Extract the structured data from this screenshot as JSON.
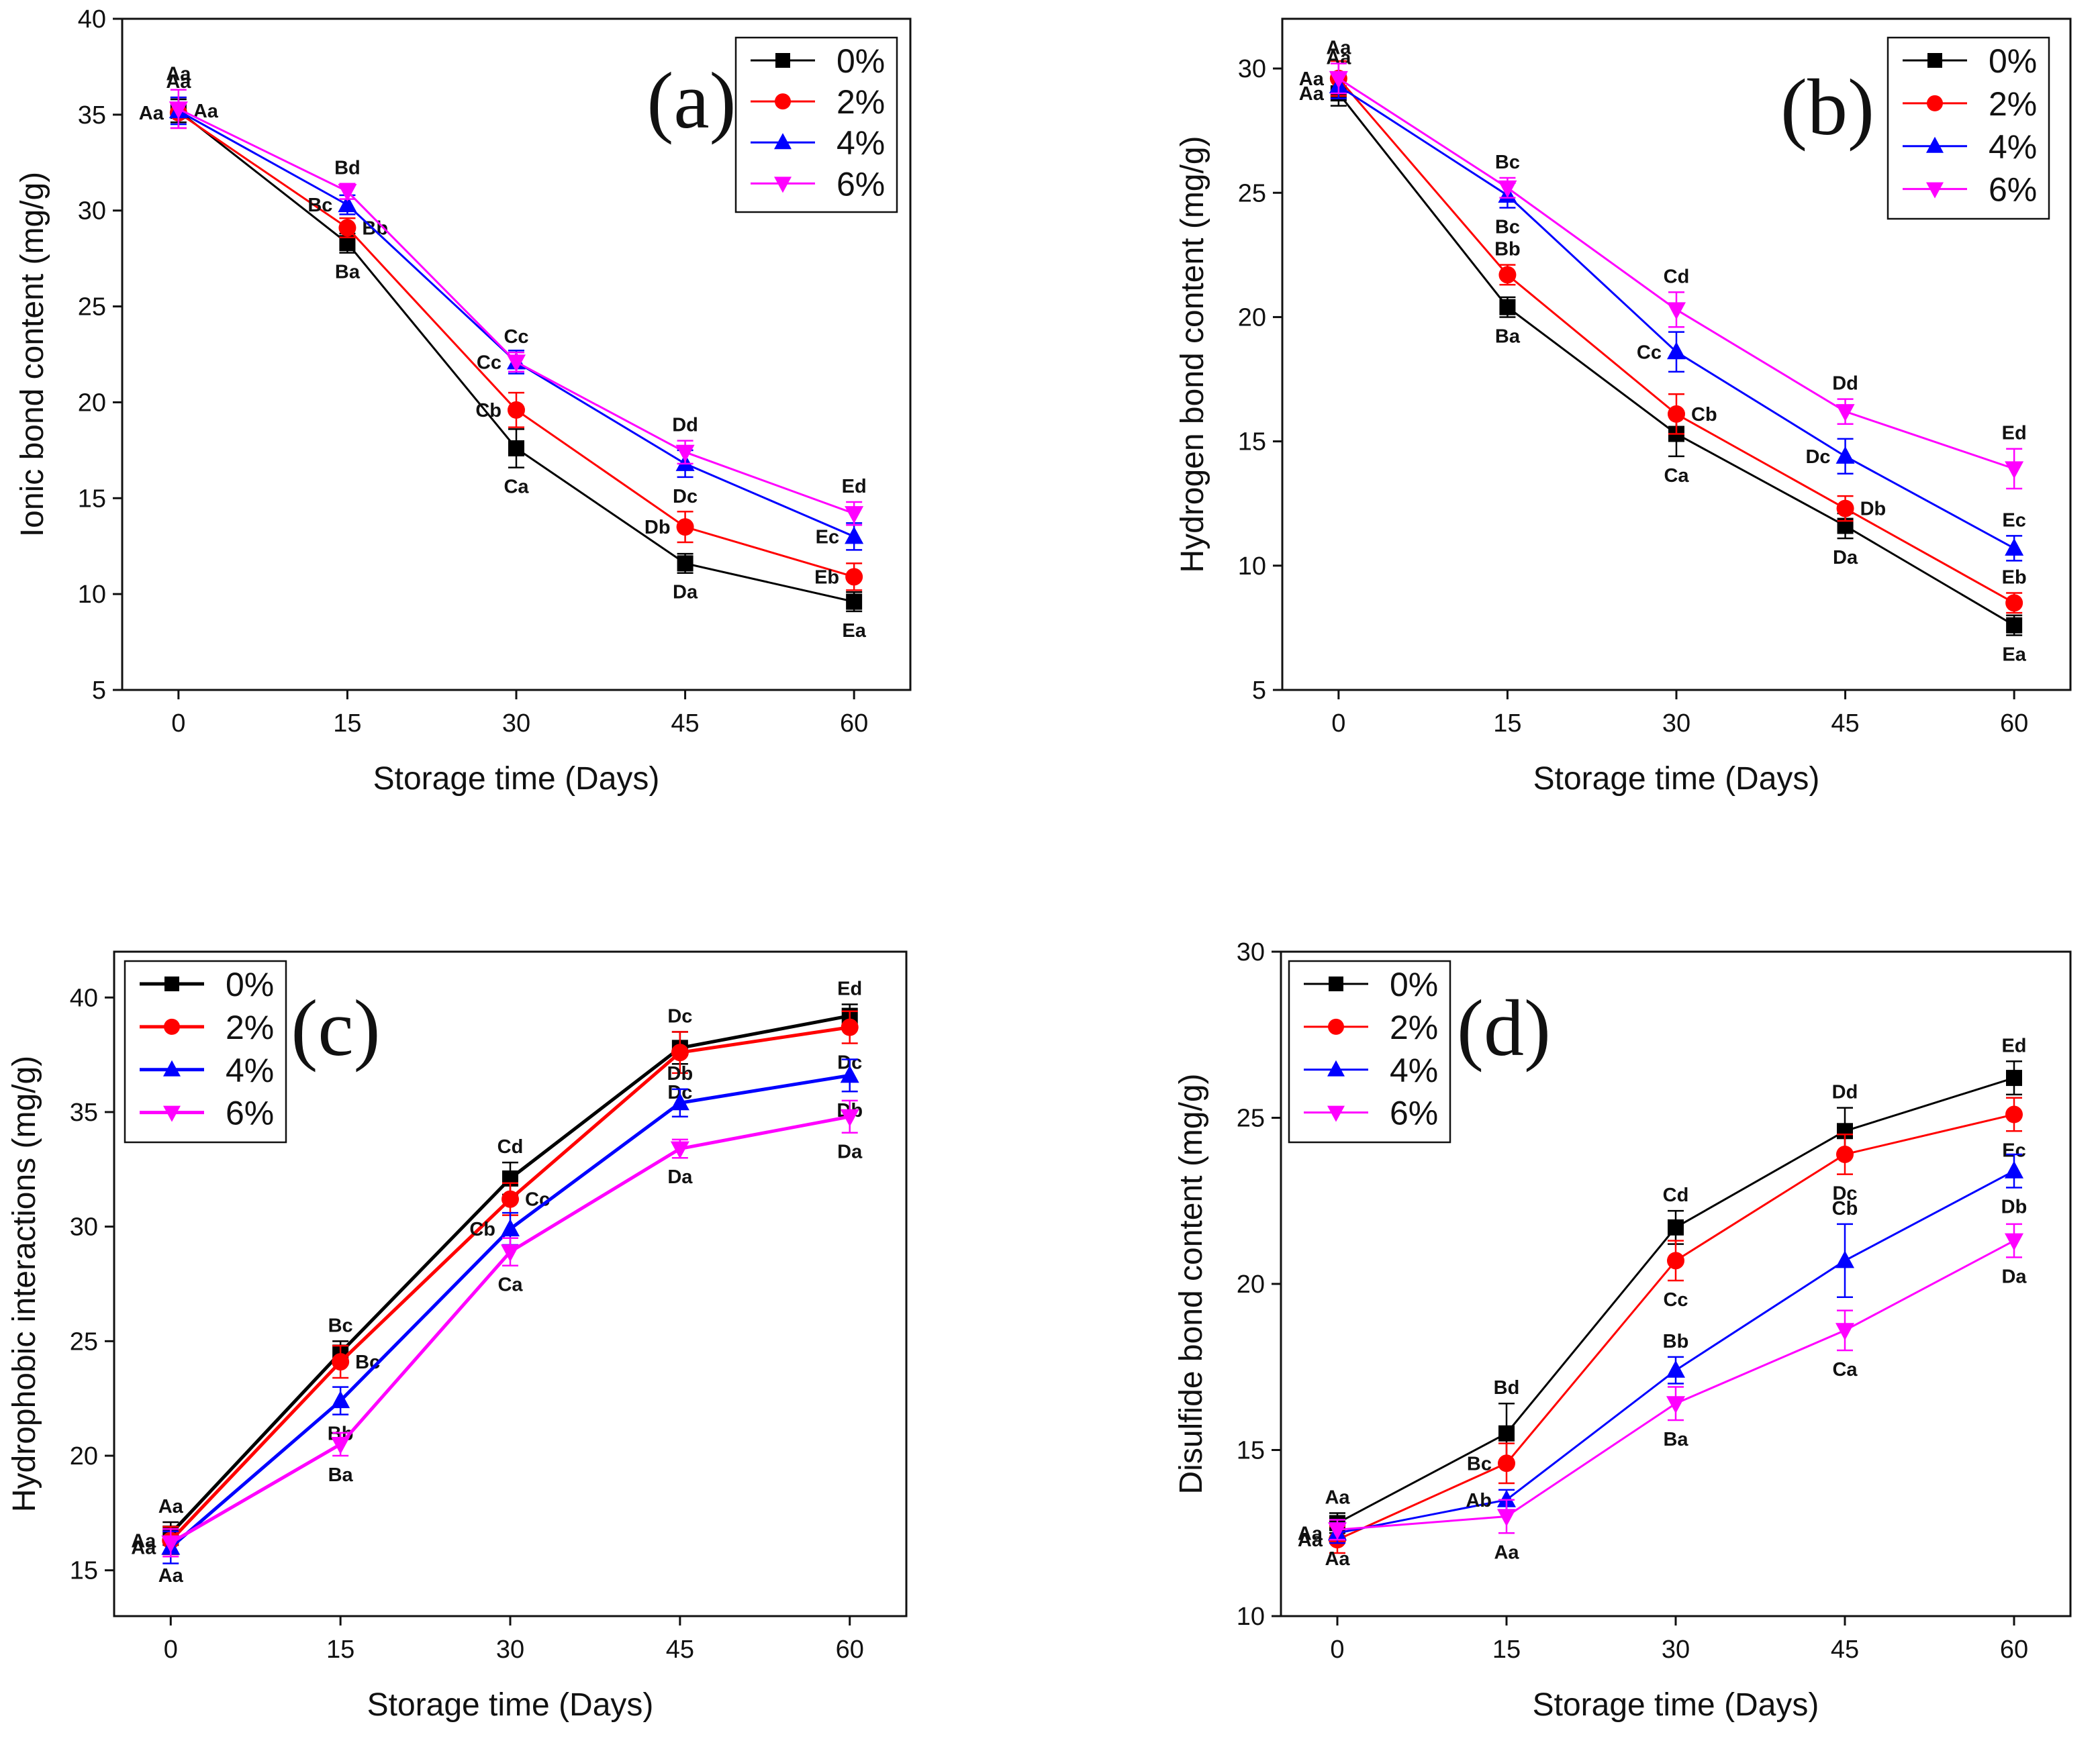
{
  "figure": {
    "x_label": "Storage time (Days)",
    "legend": [
      "0%",
      "2%",
      "4%",
      "6%"
    ],
    "series_colors": [
      "#000000",
      "#ff0000",
      "#0000ff",
      "#ff00ff"
    ],
    "series_markers": [
      "square",
      "circle",
      "triangle-up",
      "triangle-down"
    ]
  },
  "chart_data": [
    {
      "type": "line",
      "panel": "(a)",
      "title": "",
      "xlabel": "Storage time (Days)",
      "ylabel": "Ionic bond content (mg/g)",
      "x": [
        0,
        15,
        30,
        45,
        60
      ],
      "xticks": [
        0,
        15,
        30,
        45,
        60
      ],
      "xlim": [
        -5,
        65
      ],
      "ylim": [
        5,
        40
      ],
      "yticks": [
        5,
        10,
        15,
        20,
        25,
        30,
        35,
        40
      ],
      "legend_position": "top-right",
      "series": [
        {
          "name": "0%",
          "values": [
            35.2,
            28.3,
            17.6,
            11.6,
            9.6
          ],
          "errors": [
            0.6,
            0.5,
            1.0,
            0.5,
            0.5
          ],
          "labels": [
            "Aa",
            "Ba",
            "Ca",
            "Da",
            "Ea"
          ]
        },
        {
          "name": "2%",
          "values": [
            35.1,
            29.1,
            19.6,
            13.5,
            10.9
          ],
          "errors": [
            0.8,
            0.5,
            0.9,
            0.8,
            0.7
          ],
          "labels": [
            "Aa",
            "Bb",
            "Cb",
            "Db",
            "Eb"
          ]
        },
        {
          "name": "4%",
          "values": [
            35.2,
            30.3,
            22.1,
            16.8,
            13.0
          ],
          "errors": [
            0.7,
            0.5,
            0.6,
            0.7,
            0.7
          ],
          "labels": [
            "Aa",
            "Bc",
            "Cc",
            "Dc",
            "Ec"
          ]
        },
        {
          "name": "6%",
          "values": [
            35.3,
            31.0,
            22.1,
            17.4,
            14.2
          ],
          "errors": [
            1.0,
            0.4,
            0.5,
            0.6,
            0.6
          ],
          "labels": [
            "Aa",
            "Bd",
            "Cc",
            "Dd",
            "Ed"
          ]
        }
      ]
    },
    {
      "type": "line",
      "panel": "(b)",
      "title": "",
      "xlabel": "Storage time (Days)",
      "ylabel": "Hydrogen bond content (mg/g)",
      "x": [
        0,
        15,
        30,
        45,
        60
      ],
      "xticks": [
        0,
        15,
        30,
        45,
        60
      ],
      "xlim": [
        -5,
        65
      ],
      "ylim": [
        5,
        32
      ],
      "yticks": [
        5,
        10,
        15,
        20,
        25,
        30
      ],
      "legend_position": "top-right",
      "series": [
        {
          "name": "0%",
          "values": [
            29.0,
            20.4,
            15.3,
            11.6,
            7.6
          ],
          "errors": [
            0.5,
            0.4,
            0.9,
            0.5,
            0.4
          ],
          "labels": [
            "Aa",
            "Ba",
            "Ca",
            "Da",
            "Ea"
          ]
        },
        {
          "name": "2%",
          "values": [
            29.6,
            21.7,
            16.1,
            12.3,
            8.5
          ],
          "errors": [
            0.7,
            0.4,
            0.8,
            0.5,
            0.4
          ],
          "labels": [
            "Aa",
            "Bb",
            "Cb",
            "Db",
            "Eb"
          ]
        },
        {
          "name": "4%",
          "values": [
            29.3,
            24.9,
            18.6,
            14.4,
            10.7
          ],
          "errors": [
            0.5,
            0.5,
            0.8,
            0.7,
            0.5
          ],
          "labels": [
            "Aa",
            "Bc",
            "Cc",
            "Dc",
            "Ec"
          ]
        },
        {
          "name": "6%",
          "values": [
            29.6,
            25.2,
            20.3,
            16.2,
            13.9
          ],
          "errors": [
            0.6,
            0.4,
            0.7,
            0.5,
            0.8
          ],
          "labels": [
            "Aa",
            "Bc",
            "Cd",
            "Dd",
            "Ed"
          ]
        }
      ]
    },
    {
      "type": "line",
      "panel": "(c)",
      "title": "",
      "xlabel": "Storage time (Days)",
      "ylabel": "Hydrophobic interactions (mg/g)",
      "x": [
        0,
        15,
        30,
        45,
        60
      ],
      "xticks": [
        0,
        15,
        30,
        45,
        60
      ],
      "xlim": [
        -5,
        65
      ],
      "ylim": [
        13,
        42
      ],
      "yticks": [
        15,
        20,
        25,
        30,
        35,
        40
      ],
      "legend_position": "top-left",
      "series": [
        {
          "name": "0%",
          "values": [
            16.6,
            24.5,
            32.1,
            37.8,
            39.2
          ],
          "errors": [
            0.5,
            0.5,
            0.7,
            0.7,
            0.5
          ],
          "labels": [
            "Aa",
            "Bc",
            "Cd",
            "Dc",
            "Ed"
          ]
        },
        {
          "name": "2%",
          "values": [
            16.3,
            24.1,
            31.2,
            37.6,
            38.7
          ],
          "errors": [
            0.6,
            0.7,
            0.7,
            0.9,
            0.7
          ],
          "labels": [
            "Aa",
            "Bc",
            "Cc",
            "Dc",
            "Dc"
          ]
        },
        {
          "name": "4%",
          "values": [
            16.0,
            22.4,
            29.9,
            35.4,
            36.6
          ],
          "errors": [
            0.7,
            0.6,
            0.7,
            0.6,
            0.7
          ],
          "labels": [
            "Aa",
            "Bb",
            "Cb",
            "Db",
            "Db"
          ]
        },
        {
          "name": "6%",
          "values": [
            16.2,
            20.5,
            28.9,
            33.4,
            34.8
          ],
          "errors": [
            0.6,
            0.5,
            0.6,
            0.4,
            0.7
          ],
          "labels": [
            "Aa",
            "Ba",
            "Ca",
            "Da",
            "Da"
          ]
        }
      ]
    },
    {
      "type": "line",
      "panel": "(d)",
      "title": "",
      "xlabel": "Storage time (Days)",
      "ylabel": "Disulfide bond content (mg/g)",
      "x": [
        0,
        15,
        30,
        45,
        60
      ],
      "xticks": [
        0,
        15,
        30,
        45,
        60
      ],
      "xlim": [
        -5,
        65
      ],
      "ylim": [
        10,
        30
      ],
      "yticks": [
        10,
        15,
        20,
        25,
        30
      ],
      "legend_position": "top-left",
      "series": [
        {
          "name": "0%",
          "values": [
            12.8,
            15.5,
            21.7,
            24.6,
            26.2
          ],
          "errors": [
            0.3,
            0.9,
            0.5,
            0.7,
            0.5
          ],
          "labels": [
            "Aa",
            "Bd",
            "Cd",
            "Dd",
            "Ed"
          ]
        },
        {
          "name": "2%",
          "values": [
            12.3,
            14.6,
            20.7,
            23.9,
            25.1
          ],
          "errors": [
            0.4,
            0.6,
            0.6,
            0.6,
            0.5
          ],
          "labels": [
            "Aa",
            "Bc",
            "Cc",
            "Dc",
            "Ec"
          ]
        },
        {
          "name": "4%",
          "values": [
            12.5,
            13.5,
            17.4,
            20.7,
            23.4
          ],
          "errors": [
            0.3,
            0.3,
            0.4,
            1.1,
            0.5
          ],
          "labels": [
            "Aa",
            "Ab",
            "Bb",
            "Cb",
            "Db"
          ]
        },
        {
          "name": "6%",
          "values": [
            12.6,
            13.0,
            16.4,
            18.6,
            21.3
          ],
          "errors": [
            0.3,
            0.5,
            0.5,
            0.6,
            0.5
          ],
          "labels": [
            "Aa",
            "Aa",
            "Ba",
            "Ca",
            "Da"
          ]
        }
      ]
    }
  ]
}
